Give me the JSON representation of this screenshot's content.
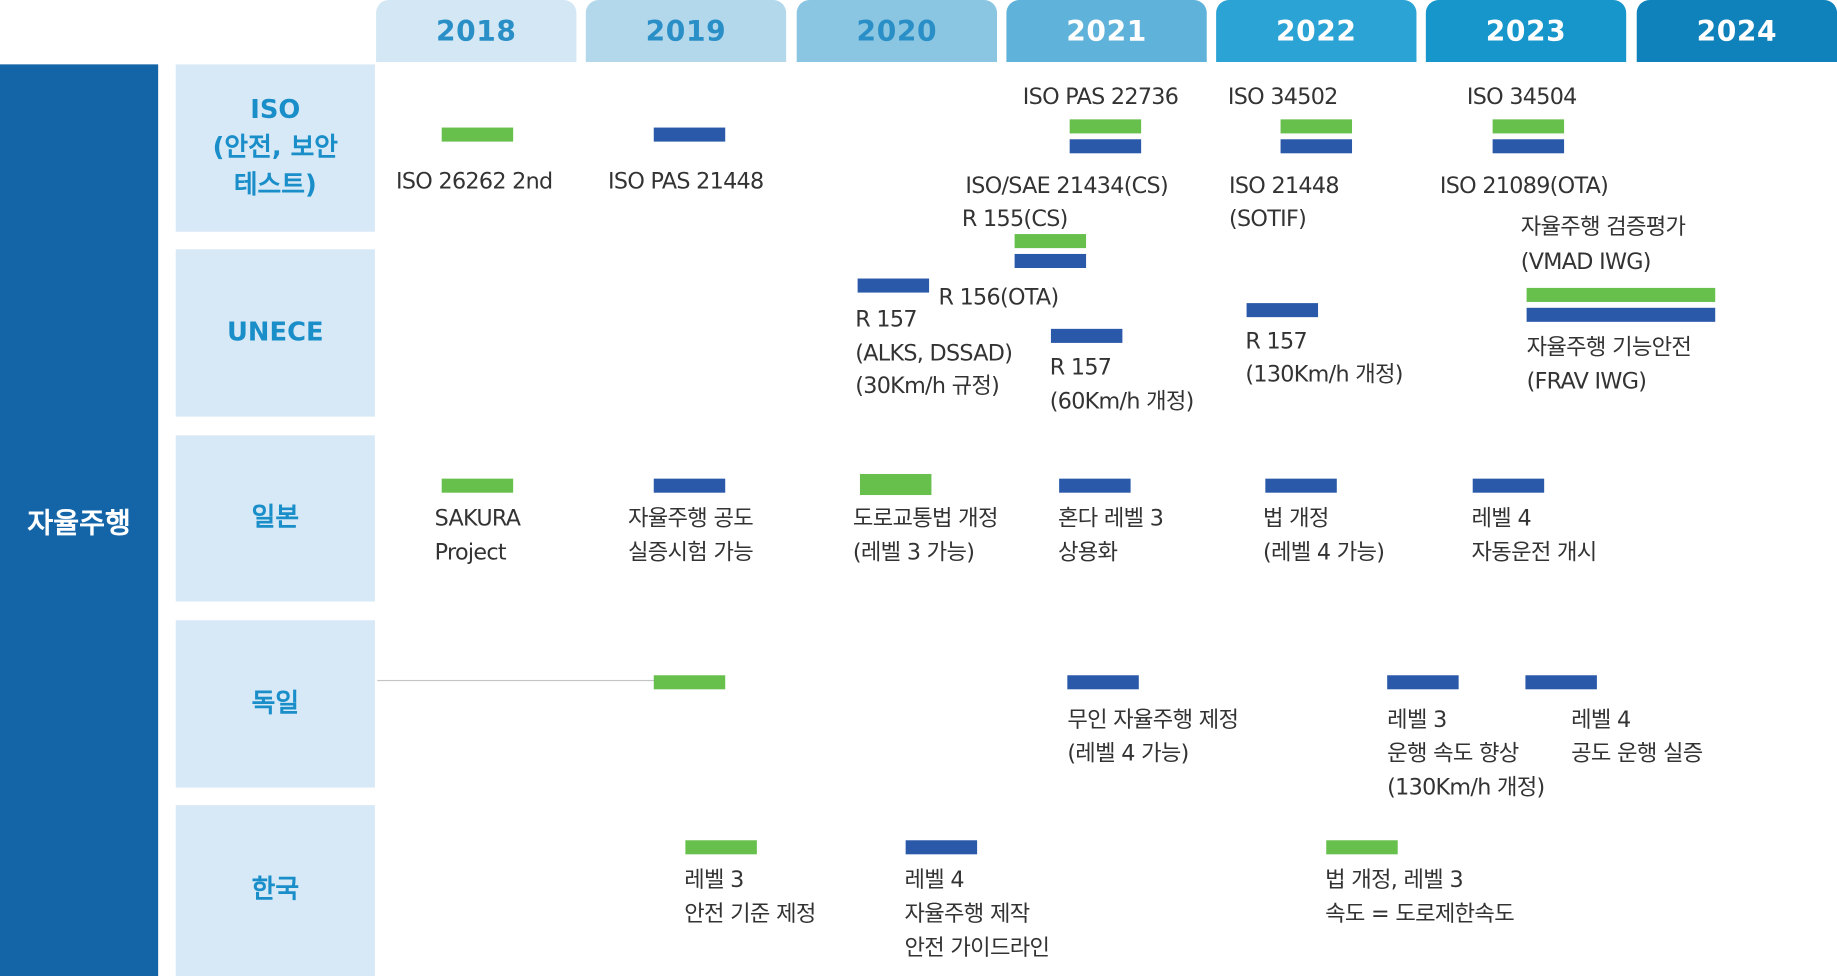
{
  "colors": {
    "standard_green": "#67bf4c",
    "standard_blue": "#2a59a9",
    "domain_blue": "#1464a8",
    "row_bg": "#d7e9f7",
    "row_text": "#1a8ec9"
  },
  "years": [
    "2018",
    "2019",
    "2020",
    "2021",
    "2022",
    "2023",
    "2024"
  ],
  "domain": "자율주행",
  "rows": {
    "iso": "ISO\n(안전, 보안\n테스트)",
    "unece": "UNECE",
    "japan": "일본",
    "germany": "독일",
    "korea": "한국"
  },
  "iso": {
    "iso26262": "ISO 26262 2nd",
    "pas21448": "ISO PAS 21448",
    "pas22736": "ISO PAS 22736",
    "sae21434_1": "ISO/SAE 21434(CS)",
    "sae21434_2": "R 155(CS)",
    "iso34502": "ISO 34502",
    "iso21448_1": "ISO 21448",
    "iso21448_2": "(SOTIF)",
    "iso34504": "ISO 34504",
    "iso21089": "ISO 21089(OTA)"
  },
  "unece": {
    "r156": "R 156(OTA)",
    "r157a_1": "R 157",
    "r157a_2": "(ALKS, DSSAD)",
    "r157a_3": "(30Km/h 규정)",
    "r157b_1": "R 157",
    "r157b_2": "(60Km/h 개정)",
    "r157c_1": "R 157",
    "r157c_2": "(130Km/h 개정)",
    "vmad_1": "자율주행 검증평가",
    "vmad_2": "(VMAD IWG)",
    "frav_1": "자율주행 기능안전",
    "frav_2": "(FRAV IWG)"
  },
  "japan": {
    "sakura_1": "SAKURA",
    "sakura_2": "Project",
    "road_test_1": "자율주행 공도",
    "road_test_2": "실증시험 가능",
    "traffic_law_1": "도로교통법 개정",
    "traffic_law_2": "(레벨 3 가능)",
    "honda_1": "혼다 레벨 3",
    "honda_2": "상용화",
    "law_rev_1": "법 개정",
    "law_rev_2": "(레벨 4 가능)",
    "level4_1": "레벨 4",
    "level4_2": "자동운전 개시"
  },
  "germany": {
    "unmanned_1": "무인 자율주행 제정",
    "unmanned_2": "(레벨 4 가능)",
    "level3_1": "레벨 3",
    "level3_2": "운행 속도 향상",
    "level3_3": "(130Km/h 개정)",
    "level4_1": "레벨 4",
    "level4_2": "공도 운행 실증"
  },
  "korea": {
    "level3_1": "레벨 3",
    "level3_2": "안전 기준 제정",
    "level4_1": "레벨 4",
    "level4_2": "자율주행 제작",
    "level4_3": "안전 가이드라인",
    "law_1": "법 개정, 레벨 3",
    "law_2": "속도 = 도로제한속도"
  }
}
